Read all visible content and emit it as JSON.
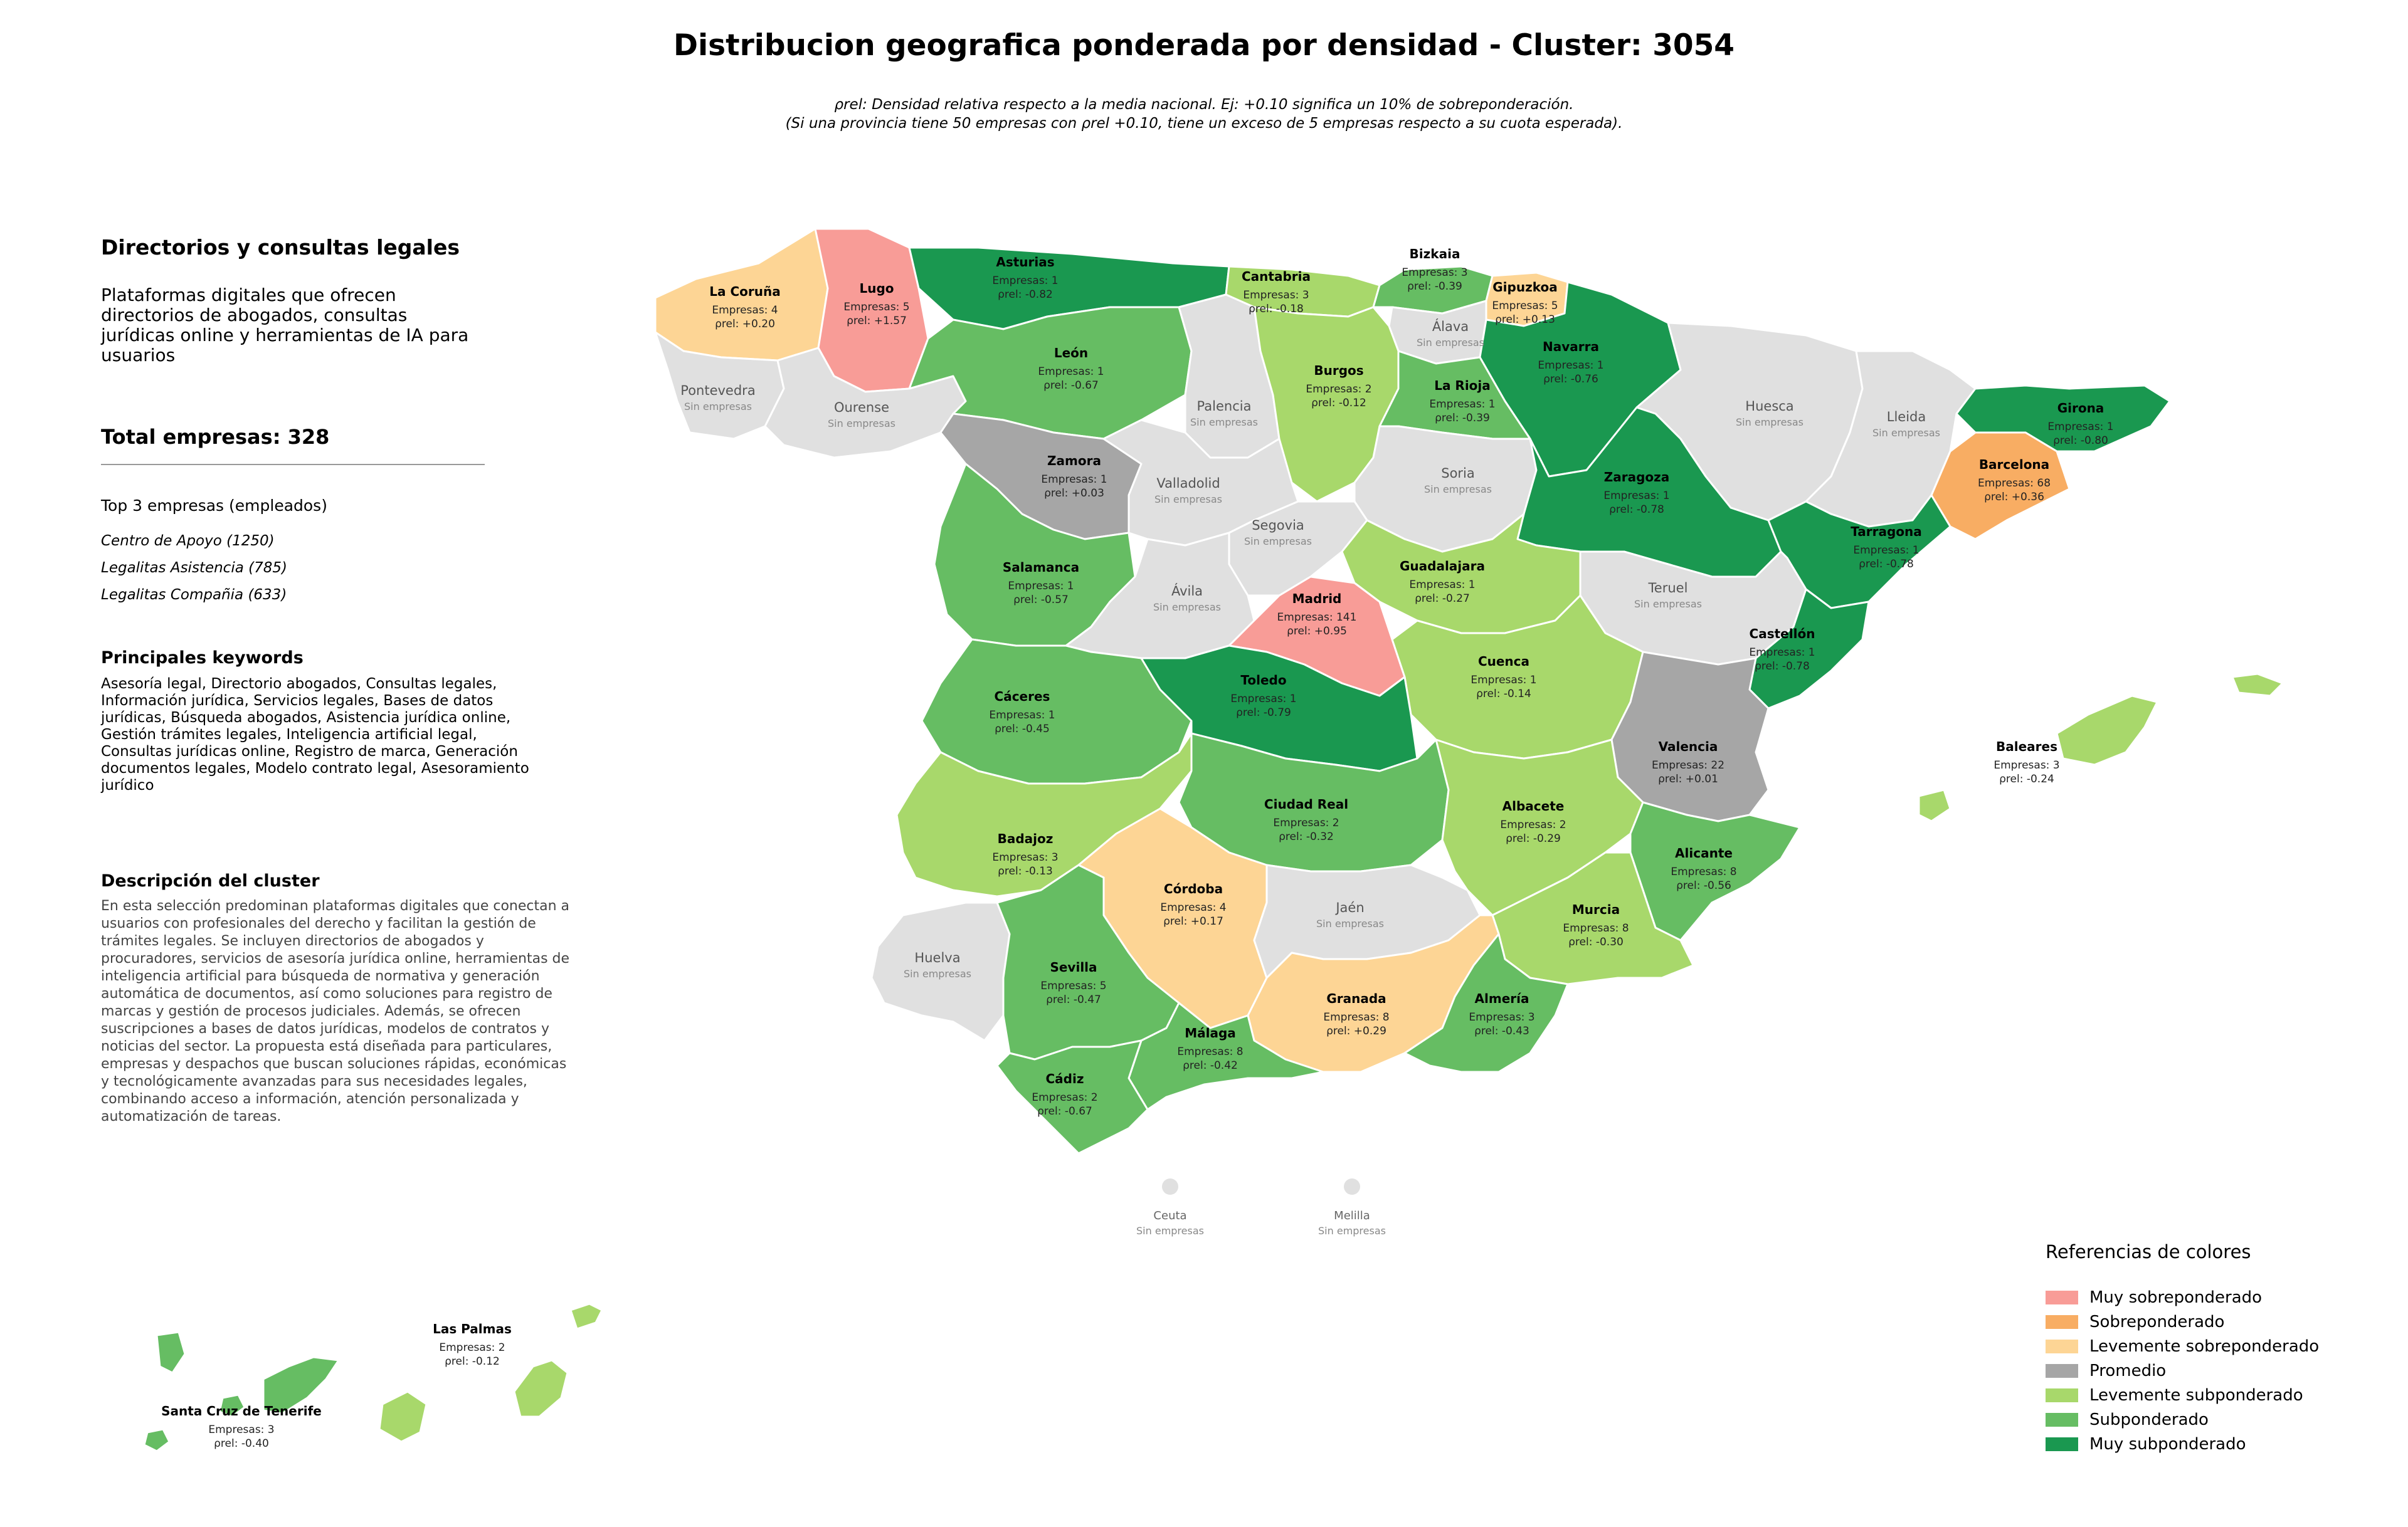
{
  "title": "Distribucion geografica ponderada por densidad - Cluster: 3054",
  "subtitle_line1": "ρrel: Densidad relativa respecto a la media nacional. Ej: +0.10 significa un 10% de sobreponderación.",
  "subtitle_line2": "(Si una provincia tiene 50 empresas con ρrel +0.10, tiene un exceso de 5 empresas respecto a su cuota esperada).",
  "cluster_name": "Directorios y consultas legales",
  "cluster_short_desc": "Plataformas digitales que ofrecen directorios de abogados, consultas jurídicas online y herramientas de IA para usuarios",
  "total_label": "Total empresas: 328",
  "top3_heading": "Top 3 empresas (empleados)",
  "top3": [
    "Centro de Apoyo (1250)",
    "Legalitas Asistencia (785)",
    "Legalitas Compañia (633)"
  ],
  "keywords_heading": "Principales keywords",
  "keywords": "Asesoría legal, Directorio abogados, Consultas legales, Información jurídica, Servicios legales, Bases de datos jurídicas, Búsqueda abogados, Asistencia jurídica online, Gestión trámites legales, Inteligencia artificial legal, Consultas jurídicas online, Registro de marca, Generación documentos legales, Modelo contrato legal, Asesoramiento jurídico",
  "description_heading": "Descripción del cluster",
  "description": "En esta selección predominan plataformas digitales que conectan a usuarios con profesionales del derecho y facilitan la gestión de trámites legales. Se incluyen directorios de abogados y procuradores, servicios de asesoría jurídica online, herramientas de inteligencia artificial para búsqueda de normativa y generación automática de documentos, así como soluciones para registro de marcas y gestión de procesos judiciales. Además, se ofrecen suscripciones a bases de datos jurídicas, modelos de contratos y noticias del sector. La propuesta está diseñada para particulares, empresas y despachos que buscan soluciones rápidas, económicas y tecnológicamente avanzadas para sus necesidades legales, combinando acceso a información, atención personalizada y automatización de tareas.",
  "no_companies_label": "Sin empresas",
  "companies_prefix": "Empresas: ",
  "rho_prefix": "ρrel: ",
  "legend_title": "Referencias de colores",
  "legend": [
    {
      "label": "Muy sobreponderado",
      "color": "#f89c97"
    },
    {
      "label": "Sobreponderado",
      "color": "#f8ad63"
    },
    {
      "label": "Levemente sobreponderado",
      "color": "#fdd595"
    },
    {
      "label": "Promedio",
      "color": "#a6a6a6"
    },
    {
      "label": "Levemente subponderado",
      "color": "#a8d86b"
    },
    {
      "label": "Subponderado",
      "color": "#66bd63"
    },
    {
      "label": "Muy subponderado",
      "color": "#1a9850"
    }
  ],
  "no_data_color": "#e0e0e0",
  "provinces": [
    {
      "name": "La Coruña",
      "companies": 4,
      "rho": "+0.20",
      "category": 2
    },
    {
      "name": "Lugo",
      "companies": 5,
      "rho": "+1.57",
      "category": 0
    },
    {
      "name": "Asturias",
      "companies": 1,
      "rho": "-0.82",
      "category": 6
    },
    {
      "name": "Cantabria",
      "companies": 3,
      "rho": "-0.18",
      "category": 4
    },
    {
      "name": "Bizkaia",
      "companies": 3,
      "rho": "-0.39",
      "category": 5
    },
    {
      "name": "Gipuzkoa",
      "companies": 5,
      "rho": "+0.13",
      "category": 2
    },
    {
      "name": "Álava",
      "companies": 0,
      "rho": null,
      "category": null
    },
    {
      "name": "Navarra",
      "companies": 1,
      "rho": "-0.76",
      "category": 6
    },
    {
      "name": "Pontevedra",
      "companies": 0,
      "rho": null,
      "category": null
    },
    {
      "name": "Ourense",
      "companies": 0,
      "rho": null,
      "category": null
    },
    {
      "name": "León",
      "companies": 1,
      "rho": "-0.67",
      "category": 5
    },
    {
      "name": "Palencia",
      "companies": 0,
      "rho": null,
      "category": null
    },
    {
      "name": "Burgos",
      "companies": 2,
      "rho": "-0.12",
      "category": 4
    },
    {
      "name": "La Rioja",
      "companies": 1,
      "rho": "-0.39",
      "category": 5
    },
    {
      "name": "Huesca",
      "companies": 0,
      "rho": null,
      "category": null
    },
    {
      "name": "Lleida",
      "companies": 0,
      "rho": null,
      "category": null
    },
    {
      "name": "Girona",
      "companies": 1,
      "rho": "-0.80",
      "category": 6
    },
    {
      "name": "Zamora",
      "companies": 1,
      "rho": "+0.03",
      "category": 3
    },
    {
      "name": "Valladolid",
      "companies": 0,
      "rho": null,
      "category": null
    },
    {
      "name": "Soria",
      "companies": 0,
      "rho": null,
      "category": null
    },
    {
      "name": "Zaragoza",
      "companies": 1,
      "rho": "-0.78",
      "category": 6
    },
    {
      "name": "Barcelona",
      "companies": 68,
      "rho": "+0.36",
      "category": 1
    },
    {
      "name": "Tarragona",
      "companies": 1,
      "rho": "-0.78",
      "category": 6
    },
    {
      "name": "Salamanca",
      "companies": 1,
      "rho": "-0.57",
      "category": 5
    },
    {
      "name": "Segovia",
      "companies": 0,
      "rho": null,
      "category": null
    },
    {
      "name": "Guadalajara",
      "companies": 1,
      "rho": "-0.27",
      "category": 4
    },
    {
      "name": "Teruel",
      "companies": 0,
      "rho": null,
      "category": null
    },
    {
      "name": "Ávila",
      "companies": 0,
      "rho": null,
      "category": null
    },
    {
      "name": "Madrid",
      "companies": 141,
      "rho": "+0.95",
      "category": 0
    },
    {
      "name": "Cuenca",
      "companies": 1,
      "rho": "-0.14",
      "category": 4
    },
    {
      "name": "Castellón",
      "companies": 1,
      "rho": "-0.78",
      "category": 6
    },
    {
      "name": "Cáceres",
      "companies": 1,
      "rho": "-0.45",
      "category": 5
    },
    {
      "name": "Toledo",
      "companies": 1,
      "rho": "-0.79",
      "category": 6
    },
    {
      "name": "Valencia",
      "companies": 22,
      "rho": "+0.01",
      "category": 3
    },
    {
      "name": "Baleares",
      "companies": 3,
      "rho": "-0.24",
      "category": 4
    },
    {
      "name": "Badajoz",
      "companies": 3,
      "rho": "-0.13",
      "category": 4
    },
    {
      "name": "Ciudad Real",
      "companies": 2,
      "rho": "-0.32",
      "category": 5
    },
    {
      "name": "Albacete",
      "companies": 2,
      "rho": "-0.29",
      "category": 4
    },
    {
      "name": "Alicante",
      "companies": 8,
      "rho": "-0.56",
      "category": 5
    },
    {
      "name": "Córdoba",
      "companies": 4,
      "rho": "+0.17",
      "category": 2
    },
    {
      "name": "Jaén",
      "companies": 0,
      "rho": null,
      "category": null
    },
    {
      "name": "Murcia",
      "companies": 8,
      "rho": "-0.30",
      "category": 4
    },
    {
      "name": "Huelva",
      "companies": 0,
      "rho": null,
      "category": null
    },
    {
      "name": "Sevilla",
      "companies": 5,
      "rho": "-0.47",
      "category": 5
    },
    {
      "name": "Granada",
      "companies": 8,
      "rho": "+0.29",
      "category": 2
    },
    {
      "name": "Almería",
      "companies": 3,
      "rho": "-0.43",
      "category": 5
    },
    {
      "name": "Málaga",
      "companies": 8,
      "rho": "-0.42",
      "category": 5
    },
    {
      "name": "Cádiz",
      "companies": 2,
      "rho": "-0.67",
      "category": 5
    },
    {
      "name": "Ceuta",
      "companies": 0,
      "rho": null,
      "category": null
    },
    {
      "name": "Melilla",
      "companies": 0,
      "rho": null,
      "category": null
    },
    {
      "name": "Las Palmas",
      "companies": 2,
      "rho": "-0.12",
      "category": 4
    },
    {
      "name": "Santa Cruz de Tenerife",
      "companies": 3,
      "rho": "-0.40",
      "category": 5
    }
  ]
}
